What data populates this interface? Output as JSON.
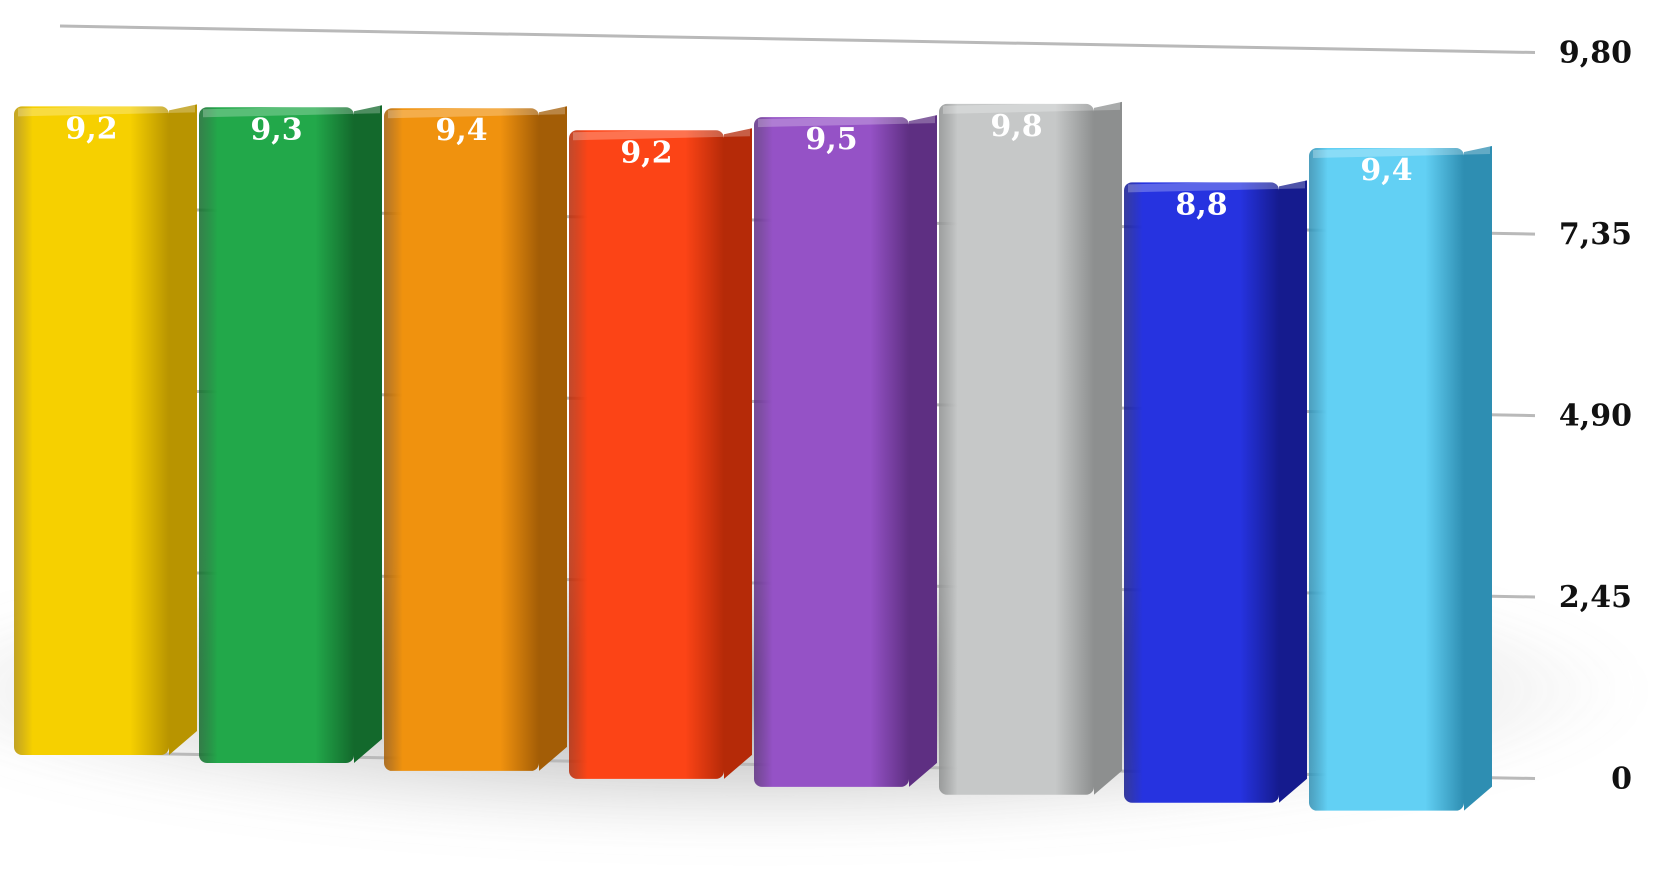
{
  "chart_data": {
    "type": "bar",
    "title": "",
    "xlabel": "",
    "ylabel": "",
    "ylim": [
      0,
      9.8
    ],
    "y_ticks": [
      0,
      2.45,
      4.9,
      7.35,
      9.8
    ],
    "y_tick_labels": [
      "0",
      "2,45",
      "4,90",
      "7,35",
      "9,80"
    ],
    "y_axis_position": "right",
    "grid": true,
    "legend": "none",
    "values": [
      9.2,
      9.3,
      9.4,
      9.2,
      9.5,
      9.8,
      8.8,
      9.4
    ],
    "data_labels": [
      "9,2",
      "9,3",
      "9,4",
      "9,2",
      "9,5",
      "9,8",
      "8,8",
      "9,4"
    ],
    "bar_colors": [
      "#f6d000",
      "#22a84a",
      "#f0920e",
      "#fc4416",
      "#9552c6",
      "#c6c8c8",
      "#2633e0",
      "#62d0f4"
    ],
    "bar_shade_colors": [
      "#b89400",
      "#13692c",
      "#a35d06",
      "#b52a08",
      "#5e2f82",
      "#8d8f8f",
      "#151b8e",
      "#2e8eb2"
    ]
  }
}
